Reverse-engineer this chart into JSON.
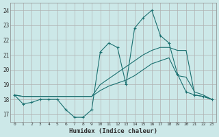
{
  "background_color": "#cce8e8",
  "grid_color": "#b0b0b0",
  "line_color": "#1a7070",
  "xlabel": "Humidex (Indice chaleur)",
  "ylim": [
    16.5,
    24.5
  ],
  "xlim": [
    -0.5,
    23.5
  ],
  "yticks": [
    17,
    18,
    19,
    20,
    21,
    22,
    23,
    24
  ],
  "xticks": [
    0,
    1,
    2,
    3,
    4,
    5,
    6,
    7,
    8,
    9,
    10,
    11,
    12,
    13,
    14,
    15,
    16,
    17,
    18,
    19,
    20,
    21,
    22,
    23
  ],
  "series1_x": [
    0,
    1,
    2,
    3,
    4,
    5,
    6,
    7,
    8,
    9,
    10,
    11,
    12,
    13,
    14,
    15,
    16,
    17,
    18,
    19,
    20,
    21,
    22,
    23
  ],
  "series1_y": [
    18.3,
    17.7,
    17.8,
    18.0,
    18.0,
    18.0,
    17.3,
    16.8,
    16.8,
    17.3,
    21.2,
    21.8,
    21.5,
    19.0,
    22.8,
    23.5,
    24.0,
    22.3,
    21.8,
    19.7,
    18.5,
    18.3,
    18.2,
    18.0
  ],
  "series2_x": [
    0,
    1,
    2,
    3,
    4,
    5,
    6,
    7,
    8,
    9,
    10,
    11,
    12,
    13,
    14,
    15,
    16,
    17,
    18,
    19,
    20,
    21,
    22,
    23
  ],
  "series2_y": [
    18.3,
    18.2,
    18.2,
    18.2,
    18.2,
    18.2,
    18.2,
    18.2,
    18.2,
    18.2,
    18.6,
    18.9,
    19.1,
    19.3,
    19.6,
    20.0,
    20.4,
    20.6,
    20.8,
    19.6,
    19.5,
    18.5,
    18.3,
    18.0
  ],
  "series3_x": [
    0,
    1,
    2,
    3,
    4,
    5,
    6,
    7,
    8,
    9,
    10,
    11,
    12,
    13,
    14,
    15,
    16,
    17,
    18,
    19,
    20,
    21,
    22,
    23
  ],
  "series3_y": [
    18.3,
    18.2,
    18.2,
    18.2,
    18.2,
    18.2,
    18.2,
    18.2,
    18.2,
    18.2,
    19.0,
    19.4,
    19.8,
    20.2,
    20.6,
    21.0,
    21.3,
    21.5,
    21.5,
    21.3,
    21.3,
    18.3,
    18.2,
    18.0
  ]
}
